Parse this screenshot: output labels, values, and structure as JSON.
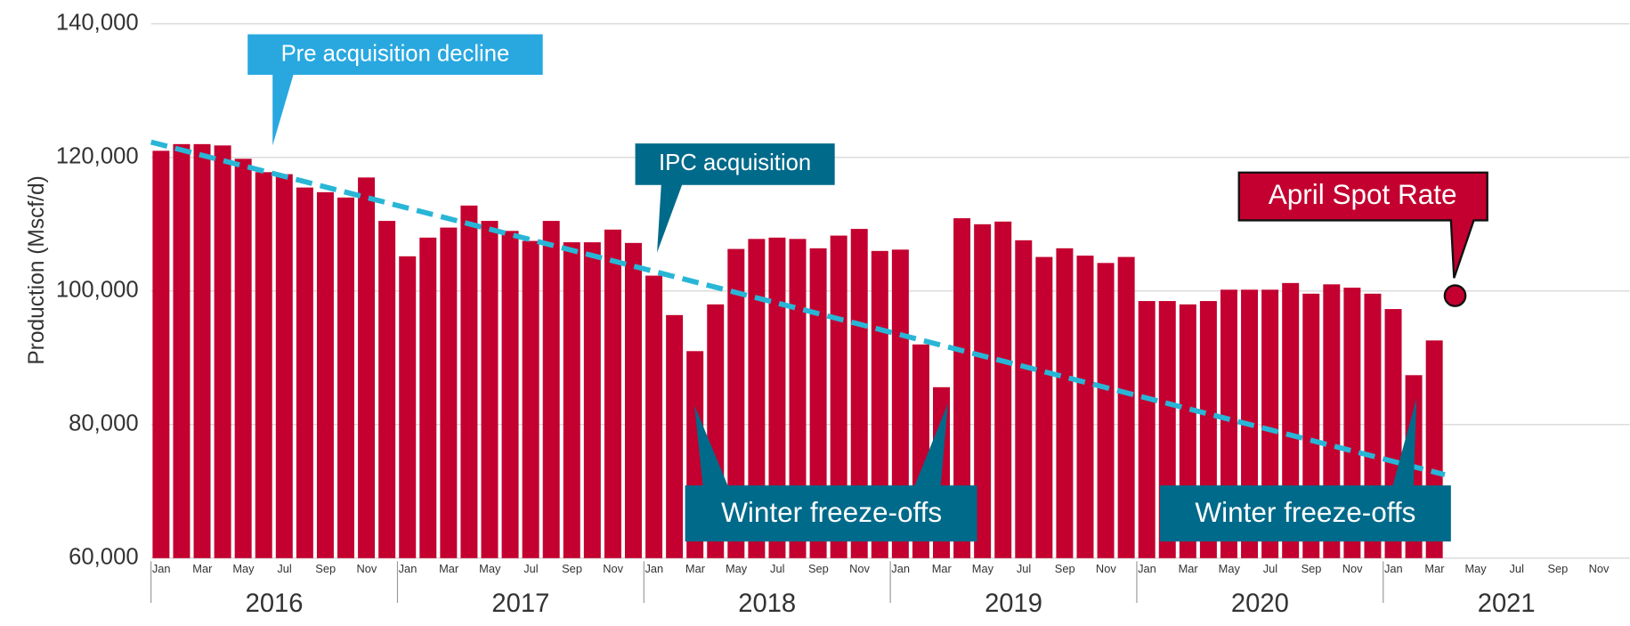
{
  "chart_data": {
    "type": "bar",
    "y_label": "Production (Mscf/d)",
    "color": "#c3002f",
    "ylim": [
      60000,
      140000
    ],
    "yticks": [
      {
        "value": 60000,
        "label": "60,000"
      },
      {
        "value": 80000,
        "label": "80,000"
      },
      {
        "value": 100000,
        "label": "100,000"
      },
      {
        "value": 120000,
        "label": "120,000"
      },
      {
        "value": 140000,
        "label": "140,000"
      }
    ],
    "grid": true,
    "years": [
      "2016",
      "2017",
      "2018",
      "2019",
      "2020",
      "2021"
    ],
    "categories": [
      "Jan",
      null,
      "Mar",
      null,
      "May",
      null,
      "Jul",
      null,
      "Sep",
      null,
      "Nov",
      null,
      "Jan",
      null,
      "Mar",
      null,
      "May",
      null,
      "Jul",
      null,
      "Sep",
      null,
      "Nov",
      null,
      "Jan",
      null,
      "Mar",
      null,
      "May",
      null,
      "Jul",
      null,
      "Sep",
      null,
      "Nov",
      null,
      "Jan",
      null,
      "Mar",
      null,
      "May",
      null,
      "Jul",
      null,
      "Sep",
      null,
      "Nov",
      null,
      "Jan",
      null,
      "Mar",
      null,
      "May",
      null,
      "Jul",
      null,
      "Sep",
      null,
      "Nov",
      null,
      "Jan",
      null,
      "Mar",
      null,
      "May",
      null,
      "Jul",
      null,
      "Sep",
      null,
      "Nov",
      null
    ],
    "values": [
      121000,
      122000,
      122000,
      121800,
      119800,
      117800,
      117500,
      115500,
      114800,
      114000,
      117000,
      110500,
      105200,
      108000,
      109500,
      112800,
      110500,
      109000,
      107500,
      110500,
      107300,
      107300,
      109200,
      107200,
      102300,
      96400,
      91000,
      98000,
      106300,
      107800,
      108000,
      107800,
      106400,
      108300,
      109300,
      106000,
      106200,
      92000,
      85600,
      110900,
      110000,
      110400,
      107600,
      105100,
      106400,
      105300,
      104200,
      105100,
      98500,
      98500,
      98000,
      98500,
      100200,
      100200,
      100200,
      101200,
      99600,
      101000,
      100500,
      99600,
      97300,
      87400,
      92600,
      null,
      null,
      null,
      null,
      null,
      null,
      null,
      null,
      null
    ],
    "trend": {
      "color": "#29b6d6",
      "values": [
        122300,
        72500
      ]
    },
    "spot_rate": {
      "label": "April Spot Rate",
      "value": 99300,
      "category_index": 63,
      "color": "#c3002f"
    },
    "annotations": [
      "Pre acquisition decline",
      "IPC acquisition",
      "Winter freeze-offs",
      "Winter freeze-offs"
    ]
  }
}
